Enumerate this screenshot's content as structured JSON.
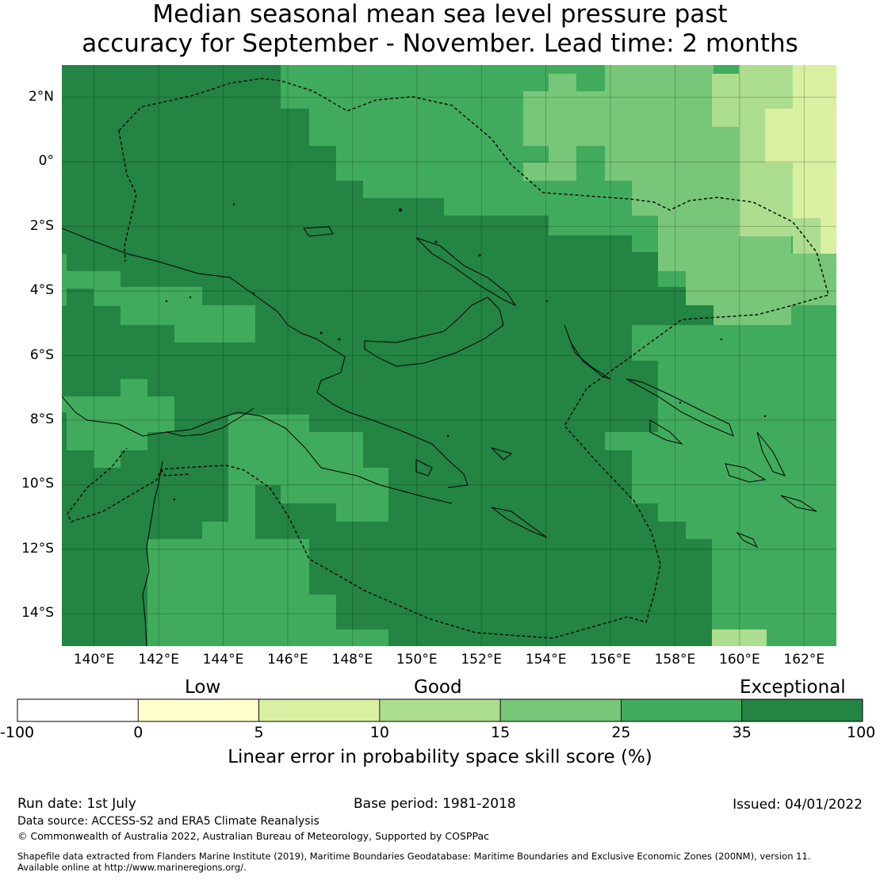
{
  "title": {
    "line1": "Median seasonal mean sea level pressure past",
    "line2": "accuracy for September - November. Lead time: 2 months"
  },
  "map": {
    "lon_range": [
      139,
      163
    ],
    "lat_range": [
      -15,
      3
    ],
    "lon_ticks": [
      "140°E",
      "142°E",
      "144°E",
      "146°E",
      "148°E",
      "150°E",
      "152°E",
      "154°E",
      "156°E",
      "158°E",
      "160°E",
      "162°E"
    ],
    "lat_ticks": [
      "2°N",
      "0°",
      "2°S",
      "4°S",
      "6°S",
      "8°S",
      "10°S",
      "12°S",
      "14°S"
    ],
    "gridlines": true,
    "eez_boundary": "dashed",
    "coastline": "solid"
  },
  "colorbar": {
    "categories": [
      "Low",
      "Good",
      "Exceptional"
    ],
    "tick_labels": [
      "-100",
      "0",
      "5",
      "10",
      "15",
      "25",
      "35",
      "100"
    ],
    "colors": [
      "#ffffff",
      "#ffffcc",
      "#d9f0a3",
      "#addd8e",
      "#78c679",
      "#41ab5d",
      "#238443"
    ],
    "label": "Linear error in probability space skill score (%)"
  },
  "footer": {
    "run_date": "Run date: 1st July",
    "base_period": "Base period: 1981-2018",
    "issued": "Issued: 04/01/2022",
    "data_source": "Data source: ACCESS-S2 and ERA5 Climate Reanalysis",
    "copyright": "© Commonwealth of Australia 2022, Australian Bureau of Meteorology, Supported by COSPPac",
    "shapefile_line1": "Shapefile data extracted from Flanders Marine Institute (2019), Maritime Boundaries Geodatabase: Maritime Boundaries and Exclusive Economic Zones (200NM), version 11.",
    "shapefile_line2": "Available online at http://www.marineregions.org/."
  }
}
